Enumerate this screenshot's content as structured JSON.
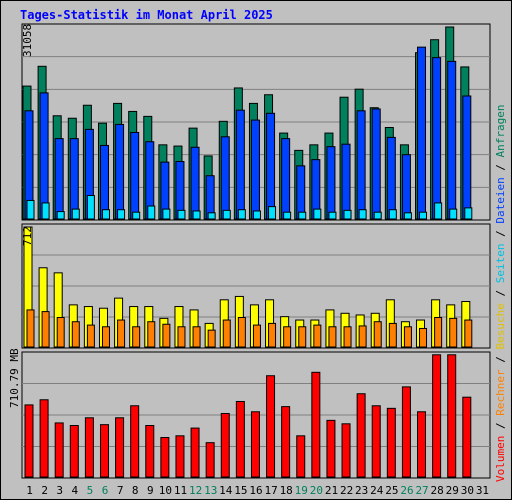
{
  "title": "Tages-Statistik im Monat April 2025",
  "colors": {
    "background": "#c0c0c0",
    "title": "#0000ff",
    "hits": "#00805c",
    "files": "#0040ff",
    "pages": "#00e0ff",
    "visits": "#ffff00",
    "sites": "#ff8000",
    "kbytes": "#ff0000",
    "weekend_day_label": "#00805c",
    "grid": "#808080"
  },
  "chart_data": [
    {
      "type": "bar",
      "name": "hits_files_pages",
      "categories": [
        "1",
        "2",
        "3",
        "4",
        "5",
        "6",
        "7",
        "8",
        "9",
        "10",
        "11",
        "12",
        "13",
        "14",
        "15",
        "16",
        "17",
        "18",
        "19",
        "20",
        "21",
        "22",
        "23",
        "24",
        "25",
        "26",
        "27",
        "28",
        "29",
        "30",
        "31"
      ],
      "ylabel_max": "31058",
      "ylim": [
        0,
        31058
      ],
      "series": [
        {
          "name": "Anfragen",
          "values": [
            21500,
            24700,
            16700,
            16300,
            18400,
            15500,
            18700,
            17400,
            16600,
            12000,
            11800,
            14700,
            10200,
            15800,
            21200,
            18700,
            20100,
            13900,
            11100,
            12000,
            13900,
            19700,
            21000,
            18000,
            14800,
            12000,
            26900,
            29000,
            31058,
            24600,
            0
          ]
        },
        {
          "name": "Dateien",
          "values": [
            17500,
            20400,
            13000,
            13000,
            14500,
            11900,
            15300,
            14000,
            12500,
            9200,
            9300,
            11600,
            7000,
            13300,
            17600,
            16000,
            17100,
            13000,
            8600,
            9600,
            11700,
            12100,
            17500,
            17800,
            13200,
            10400,
            27800,
            26100,
            25500,
            19900,
            0
          ]
        },
        {
          "name": "Seiten",
          "values": [
            3000,
            2600,
            1200,
            1600,
            3800,
            1500,
            1500,
            1100,
            2100,
            1600,
            1400,
            1300,
            1000,
            1400,
            1500,
            1300,
            2000,
            1100,
            1100,
            1600,
            1100,
            1400,
            1500,
            1100,
            1500,
            1000,
            1100,
            2600,
            1600,
            1800,
            0
          ]
        }
      ]
    },
    {
      "type": "bar",
      "name": "visits_sites",
      "categories": [
        "1",
        "2",
        "3",
        "4",
        "5",
        "6",
        "7",
        "8",
        "9",
        "10",
        "11",
        "12",
        "13",
        "14",
        "15",
        "16",
        "17",
        "18",
        "19",
        "20",
        "21",
        "22",
        "23",
        "24",
        "25",
        "26",
        "27",
        "28",
        "29",
        "30",
        "31"
      ],
      "ylabel_max": "712",
      "ylim": [
        0,
        712
      ],
      "series": [
        {
          "name": "Besuche",
          "values": [
            712,
            470,
            440,
            250,
            240,
            230,
            290,
            240,
            240,
            170,
            240,
            220,
            140,
            280,
            300,
            250,
            280,
            180,
            160,
            160,
            220,
            200,
            190,
            200,
            280,
            150,
            160,
            280,
            250,
            270,
            0
          ]
        },
        {
          "name": "Rechner",
          "values": [
            220,
            210,
            175,
            150,
            130,
            120,
            160,
            120,
            150,
            135,
            120,
            120,
            100,
            160,
            175,
            130,
            140,
            120,
            120,
            130,
            120,
            120,
            125,
            150,
            140,
            120,
            110,
            175,
            170,
            160,
            0
          ]
        }
      ]
    },
    {
      "type": "bar",
      "name": "kbytes",
      "categories": [
        "1",
        "2",
        "3",
        "4",
        "5",
        "6",
        "7",
        "8",
        "9",
        "10",
        "11",
        "12",
        "13",
        "14",
        "15",
        "16",
        "17",
        "18",
        "19",
        "20",
        "21",
        "22",
        "23",
        "24",
        "25",
        "26",
        "27",
        "28",
        "29",
        "30",
        "31"
      ],
      "ylabel_max": "710.79 MB",
      "ylim": [
        0,
        710.79
      ],
      "series": [
        {
          "name": "Volumen",
          "values": [
            420,
            450,
            315,
            300,
            345,
            305,
            345,
            415,
            300,
            230,
            240,
            285,
            200,
            370,
            440,
            380,
            590,
            410,
            240,
            610,
            330,
            310,
            485,
            415,
            400,
            525,
            380,
            712,
            712,
            465,
            0
          ]
        }
      ]
    }
  ],
  "right_legend": {
    "volumen": "Volumen",
    "sep1": " / ",
    "rechner": "Rechner",
    "sep2": " / ",
    "besuche": "Besuche",
    "sep3": " / ",
    "seiten": "Seiten",
    "sep4": " / ",
    "dateien": "Dateien",
    "sep5": " / ",
    "anfragen": "Anfragen"
  },
  "weekend_days": [
    5,
    6,
    12,
    13,
    19,
    20,
    26,
    27
  ]
}
